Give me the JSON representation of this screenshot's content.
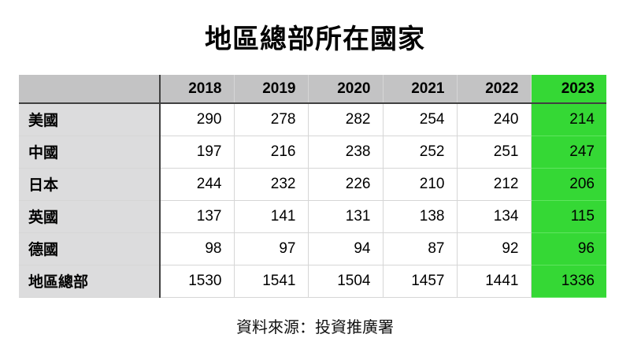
{
  "title": "地區總部所在國家",
  "source": "資料來源：投資推廣署",
  "colors": {
    "header_bg": "#c3c3c4",
    "label_column_bg": "#dcdcdd",
    "highlight_green": "#35d835",
    "highlight_separator": "#5fe45f",
    "dark_border": "#404040",
    "light_border": "#d6d6d6"
  },
  "chart_data": {
    "type": "table",
    "title": "地區總部所在國家",
    "columns": [
      "",
      "2018",
      "2019",
      "2020",
      "2021",
      "2022",
      "2023"
    ],
    "highlighted_column": "2023",
    "rows": [
      {
        "label": "美國",
        "values": [
          290,
          278,
          282,
          254,
          240,
          214
        ]
      },
      {
        "label": "中國",
        "values": [
          197,
          216,
          238,
          252,
          251,
          247
        ]
      },
      {
        "label": "日本",
        "values": [
          244,
          232,
          226,
          210,
          212,
          206
        ]
      },
      {
        "label": "英國",
        "values": [
          137,
          141,
          131,
          138,
          134,
          115
        ]
      },
      {
        "label": "德國",
        "values": [
          98,
          97,
          94,
          87,
          92,
          96
        ]
      },
      {
        "label": "地區總部",
        "values": [
          1530,
          1541,
          1504,
          1457,
          1441,
          1336
        ]
      }
    ],
    "source_note": "資料來源：投資推廣署",
    "layout": {
      "grid": true,
      "legend": "none"
    }
  }
}
